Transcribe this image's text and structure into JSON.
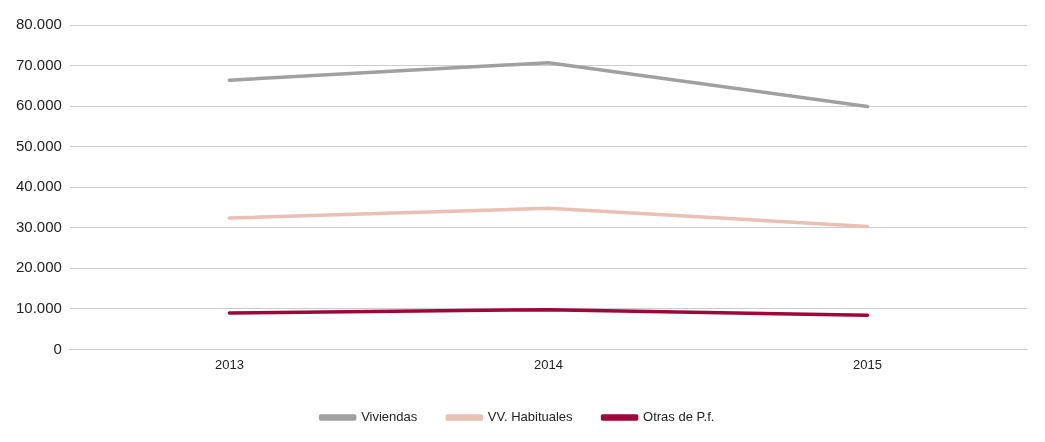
{
  "chart_data": {
    "type": "line",
    "categories": [
      "2013",
      "2014",
      "2015"
    ],
    "series": [
      {
        "name": "Viviendas",
        "color": "#a0a0a0",
        "values": [
          66400,
          70700,
          59900
        ]
      },
      {
        "name": "VV. Habituales",
        "color": "#eabfb4",
        "values": [
          32400,
          34800,
          30300
        ]
      },
      {
        "name": "Otras de P.f.",
        "color": "#a0063a",
        "values": [
          9000,
          9800,
          8400
        ]
      }
    ],
    "ylim": [
      0,
      80000
    ],
    "yticks": [
      {
        "value": 0,
        "label": "0"
      },
      {
        "value": 10000,
        "label": "10.000"
      },
      {
        "value": 20000,
        "label": "20.000"
      },
      {
        "value": 30000,
        "label": "30.000"
      },
      {
        "value": 40000,
        "label": "40.000"
      },
      {
        "value": 50000,
        "label": "50.000"
      },
      {
        "value": 60000,
        "label": "60.000"
      },
      {
        "value": 70000,
        "label": "70.000"
      },
      {
        "value": 80000,
        "label": "80.000"
      }
    ],
    "grid": "y",
    "legend": "bottom",
    "marker": "none",
    "line_style": "solid"
  }
}
